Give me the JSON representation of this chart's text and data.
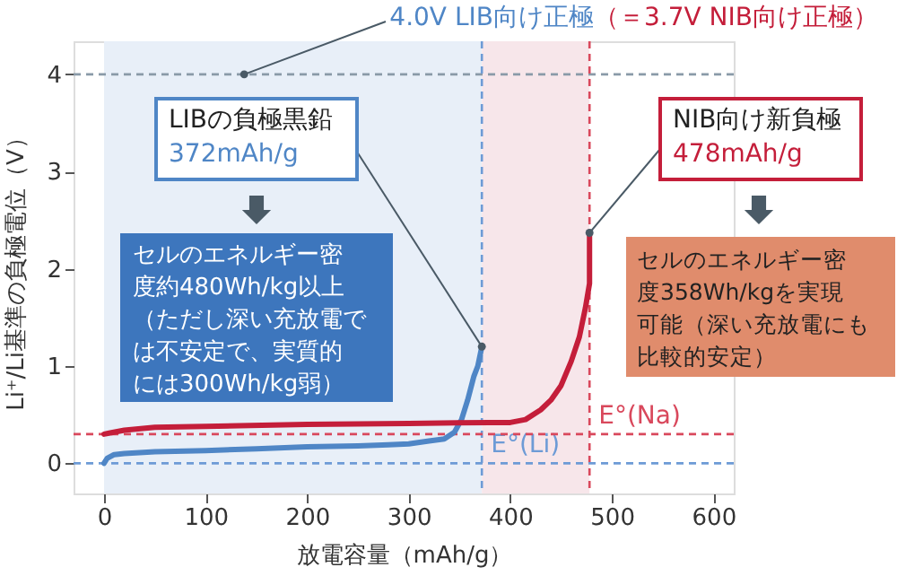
{
  "chart_data": {
    "type": "line",
    "xlabel": "放電容量（mAh/g）",
    "ylabel": "Li⁺/Li基準の負極電位（V）",
    "xlim": [
      -30,
      620
    ],
    "ylim": [
      -0.31,
      4.34
    ],
    "xticks": [
      0,
      100,
      200,
      300,
      400,
      500,
      600
    ],
    "yticks": [
      0,
      1,
      2,
      3,
      4
    ],
    "grid": false,
    "line_style": "solid",
    "series": [
      {
        "color": "#4f86c6",
        "x": [
          0,
          3,
          10,
          20,
          50,
          100,
          150,
          200,
          250,
          280,
          300,
          320,
          335,
          345,
          352,
          358,
          364,
          368,
          372
        ],
        "values": [
          0,
          0.05,
          0.09,
          0.1,
          0.12,
          0.13,
          0.15,
          0.17,
          0.18,
          0.19,
          0.2,
          0.23,
          0.25,
          0.32,
          0.45,
          0.65,
          0.89,
          1.0,
          1.2
        ]
      },
      {
        "color": "#c41e3a",
        "x": [
          0,
          5,
          20,
          50,
          100,
          200,
          300,
          380,
          400,
          415,
          430,
          440,
          450,
          460,
          468,
          474,
          478,
          478
        ],
        "values": [
          0.3,
          0.31,
          0.34,
          0.37,
          0.38,
          0.4,
          0.41,
          0.42,
          0.42,
          0.45,
          0.55,
          0.65,
          0.8,
          1.05,
          1.3,
          1.6,
          1.85,
          2.37
        ]
      }
    ],
    "bands": [
      {
        "axis": "x",
        "from": 0,
        "to": 372,
        "color": "#e8eff8"
      },
      {
        "axis": "x",
        "from": 372,
        "to": 478,
        "color": "#f7e6ea"
      }
    ],
    "ref_lines": [
      {
        "axis": "y",
        "value": 4,
        "color": "#8a9aa8",
        "line_style": "dashed"
      },
      {
        "axis": "x",
        "value": 372,
        "color": "#6d9bd6",
        "line_style": "dashed"
      },
      {
        "axis": "x",
        "value": 478,
        "color": "#d9485c",
        "line_style": "dashed"
      },
      {
        "axis": "y",
        "value": 0,
        "label": "E°(Li)",
        "color": "#6d9bd6",
        "line_style": "dashed"
      },
      {
        "axis": "y",
        "value": 0.3,
        "label": "E°(Na)",
        "color": "#d9485c",
        "line_style": "dashed"
      }
    ],
    "annotations": [
      {
        "text": "4.0V LIB向け正極",
        "x": 138,
        "y": 4
      },
      "（＝3.7V NIB向け正極）",
      {
        "text": "LIBの負極黒鉛",
        "x": 372,
        "y": 1.2
      },
      "372mAh/g",
      "セルのエネルギー密度約480Wh/kg以上（ただし深い充放電では不安定で、実質的には300Wh/kg弱）",
      {
        "text": "NIB向け新負極",
        "x": 478,
        "y": 2.37
      },
      "478mAh/g",
      "セルのエネルギー密度358Wh/kgを実現可能（深い充放電にも比較的安定）"
    ]
  }
}
